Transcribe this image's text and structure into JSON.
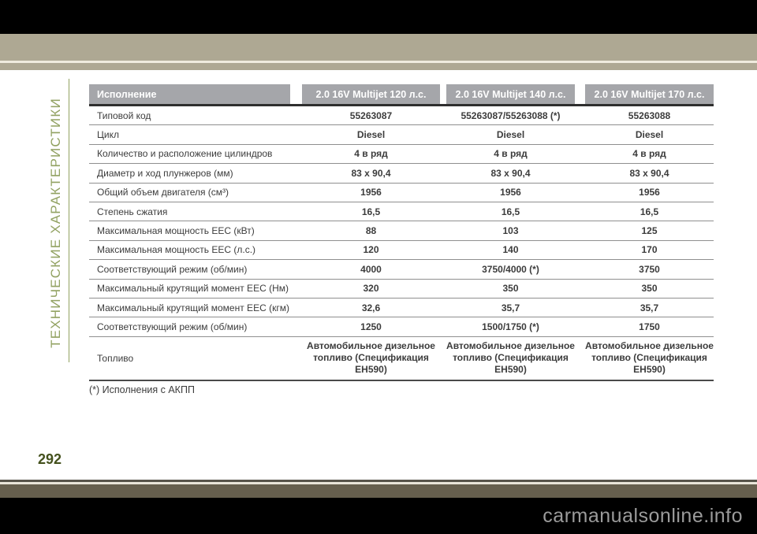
{
  "page": {
    "sidebar_title": "ТЕХНИЧЕСКИЕ ХАРАКТЕРИСТИКИ",
    "page_number": "292",
    "footnote": "(*) Исполнения с АКПП",
    "watermark": "carmanualsonline.info"
  },
  "colors": {
    "top_band": "#aea893",
    "bottom_band": "#665f4e",
    "header_cell": "#a5a6aa",
    "sidebar_accent": "#92a262",
    "page_number": "#44511d"
  },
  "table": {
    "headers": [
      "Исполнение",
      "2.0 16V Multijet 120 л.с.",
      "2.0 16V Multijet 140 л.с.",
      "2.0 16V Multijet 170 л.с."
    ],
    "rows": [
      {
        "label": "Типовой код",
        "values": [
          "55263087",
          "55263087/55263088 (*)",
          "55263088"
        ]
      },
      {
        "label": "Цикл",
        "values": [
          "Diesel",
          "Diesel",
          "Diesel"
        ]
      },
      {
        "label": "Количество и расположение цилиндров",
        "values": [
          "4 в ряд",
          "4 в ряд",
          "4 в ряд"
        ]
      },
      {
        "label": "Диаметр и ход плунжеров (мм)",
        "values": [
          "83 x 90,4",
          "83 x 90,4",
          "83 x 90,4"
        ]
      },
      {
        "label": "Общий объем двигателя (см³)",
        "values": [
          "1956",
          "1956",
          "1956"
        ]
      },
      {
        "label": "Степень сжатия",
        "values": [
          "16,5",
          "16,5",
          "16,5"
        ]
      },
      {
        "label": "Максимальная мощность EEC (кВт)",
        "values": [
          "88",
          "103",
          "125"
        ]
      },
      {
        "label": "Максимальная мощность EEC (л.с.)",
        "values": [
          "120",
          "140",
          "170"
        ]
      },
      {
        "label": "Соответствующий режим (об/мин)",
        "values": [
          "4000",
          "3750/4000 (*)",
          "3750"
        ]
      },
      {
        "label": "Максимальный крутящий момент EEC (Нм)",
        "values": [
          "320",
          "350",
          "350"
        ]
      },
      {
        "label": "Максимальный крутящий момент EEC (кгм)",
        "values": [
          "32,6",
          "35,7",
          "35,7"
        ]
      },
      {
        "label": "Соответствующий режим (об/мин)",
        "values": [
          "1250",
          "1500/1750 (*)",
          "1750"
        ]
      },
      {
        "label": "Топливо",
        "values": [
          "Автомобильное дизельное топливо (Спецификация EH590)",
          "Автомобильное дизельное топливо (Спецификация EH590)",
          "Автомобильное дизельное топливо (Спецификация EH590)"
        ]
      }
    ]
  }
}
